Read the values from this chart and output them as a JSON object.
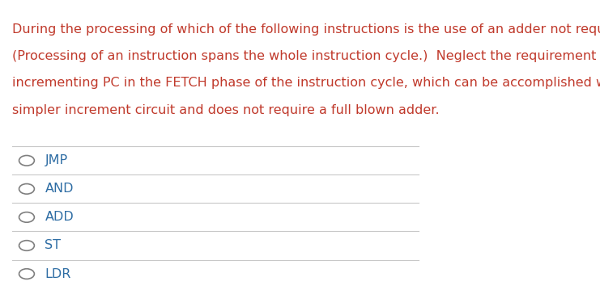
{
  "background_color": "#ffffff",
  "question_text_line1": "During the processing of which of the following instructions is the use of an adder not required?",
  "question_text_line2": "(Processing of an instruction spans the whole instruction cycle.)  Neglect the requirement of",
  "question_text_line3": "incrementing PC in the FETCH phase of the instruction cycle, which can be accomplished with a",
  "question_text_line4": "simpler increment circuit and does not require a full blown adder.",
  "question_color": "#c0392b",
  "options": [
    "JMP",
    "AND",
    "ADD",
    "ST",
    "LDR"
  ],
  "option_color": "#2e6da4",
  "circle_color": "#7f7f7f",
  "separator_color": "#c8c8c8",
  "text_fontsize": 11.5,
  "option_fontsize": 11.5,
  "figsize": [
    7.41,
    3.59
  ],
  "dpi": 100
}
